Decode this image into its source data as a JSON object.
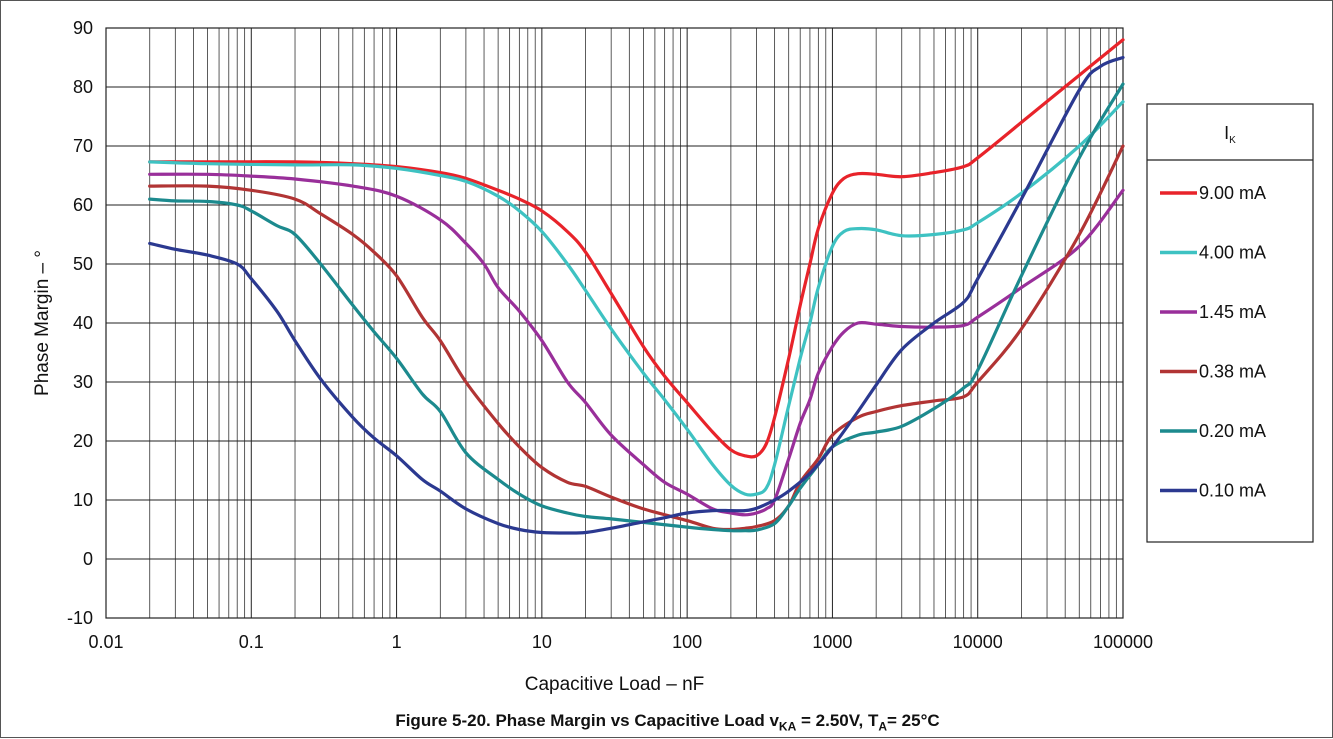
{
  "caption": {
    "prefix": "Figure 5-20. Phase Margin vs Capacitive Load v",
    "sub1": "KA",
    "middle": " = 2.50V, T",
    "sub2": "A",
    "suffix": "= 25°C"
  },
  "chart_data": {
    "type": "line",
    "title": "Figure 5-20. Phase Margin vs Capacitive Load vKA = 2.50V, TA= 25°C",
    "xlabel": "Capacitive Load – nF",
    "ylabel": "Phase Margin – °",
    "x_scale": "log",
    "xlim": [
      0.01,
      100000
    ],
    "ylim": [
      -10,
      90
    ],
    "x_tick_labels": [
      "0.01",
      "0.1",
      "1",
      "10",
      "100",
      "1000",
      "10000",
      "100000"
    ],
    "y_tick_labels": [
      "-10",
      "0",
      "10",
      "20",
      "30",
      "40",
      "50",
      "60",
      "70",
      "80",
      "90"
    ],
    "grid": true,
    "legend": {
      "title": "I",
      "title_sub": "K",
      "placement": "right"
    },
    "series": [
      {
        "name": "9.00 mA",
        "color": "#e8232a",
        "x": [
          0.02,
          0.05,
          0.2,
          0.5,
          1,
          2,
          3,
          5,
          7,
          10,
          15,
          20,
          30,
          50,
          70,
          100,
          150,
          200,
          250,
          300,
          350,
          400,
          500,
          600,
          700,
          800,
          1000,
          1200,
          1500,
          2000,
          3000,
          5000,
          8000,
          10000,
          20000,
          50000,
          100000
        ],
        "y": [
          67.3,
          67.3,
          67.3,
          67,
          66.5,
          65.5,
          64.5,
          62.5,
          61,
          59,
          55.5,
          52,
          45,
          36,
          31,
          26.5,
          21.5,
          18.5,
          17.5,
          17.5,
          19.5,
          24,
          34,
          43,
          50,
          56,
          62,
          64.5,
          65.3,
          65.2,
          64.8,
          65.5,
          66.5,
          68,
          74,
          82,
          88
        ]
      },
      {
        "name": "4.00 mA",
        "color": "#3ec2c2",
        "x": [
          0.02,
          0.05,
          0.2,
          0.5,
          1,
          2,
          3,
          5,
          7,
          10,
          15,
          20,
          30,
          50,
          70,
          100,
          150,
          200,
          250,
          300,
          350,
          400,
          500,
          600,
          700,
          800,
          1000,
          1200,
          1500,
          2000,
          3000,
          5000,
          8000,
          10000,
          20000,
          50000,
          100000
        ],
        "y": [
          67.3,
          67,
          66.8,
          66.8,
          66.2,
          65,
          64,
          61.5,
          59,
          55.5,
          50,
          45.5,
          39,
          31.5,
          27,
          22,
          16,
          12.5,
          11,
          11,
          12,
          16,
          26,
          34,
          40,
          46,
          53,
          55.5,
          56,
          55.8,
          54.8,
          55,
          55.8,
          57,
          62,
          70,
          77.5
        ]
      },
      {
        "name": "1.45 mA",
        "color": "#992f9a",
        "x": [
          0.02,
          0.05,
          0.1,
          0.2,
          0.5,
          1,
          2,
          3,
          4,
          5,
          7,
          10,
          15,
          20,
          30,
          50,
          70,
          100,
          150,
          200,
          250,
          300,
          350,
          400,
          500,
          600,
          700,
          800,
          1000,
          1200,
          1500,
          2000,
          3000,
          5000,
          8000,
          10000,
          20000,
          50000,
          100000
        ],
        "y": [
          65.2,
          65.2,
          64.9,
          64.4,
          63.2,
          61.5,
          57.5,
          53.5,
          50,
          46,
          42,
          37,
          30,
          26.5,
          21,
          16,
          13,
          11,
          8.5,
          7.8,
          7.5,
          7.8,
          8.5,
          10,
          17,
          23,
          27,
          31.5,
          36,
          38.5,
          40,
          39.8,
          39.4,
          39.3,
          39.6,
          41,
          46,
          53,
          62.5
        ]
      },
      {
        "name": "0.38 mA",
        "color": "#b13434",
        "x": [
          0.02,
          0.05,
          0.1,
          0.2,
          0.3,
          0.5,
          0.7,
          1,
          1.5,
          2,
          3,
          5,
          7,
          10,
          15,
          20,
          30,
          50,
          100,
          150,
          200,
          250,
          300,
          400,
          500,
          600,
          800,
          1000,
          1500,
          2000,
          3000,
          5000,
          8000,
          10000,
          20000,
          50000,
          100000
        ],
        "y": [
          63.2,
          63.2,
          62.5,
          61,
          58.5,
          55,
          52,
          48,
          41,
          37,
          30,
          23,
          19,
          15.5,
          13,
          12.3,
          10.5,
          8.5,
          6.5,
          5.2,
          5,
          5.2,
          5.5,
          6.5,
          9,
          13,
          17,
          21,
          24,
          25,
          26,
          26.8,
          27.5,
          30,
          39,
          55,
          70
        ]
      },
      {
        "name": "0.20 mA",
        "color": "#1c8a8e",
        "x": [
          0.02,
          0.03,
          0.05,
          0.08,
          0.1,
          0.15,
          0.2,
          0.3,
          0.5,
          0.7,
          1,
          1.5,
          2,
          3,
          5,
          7,
          10,
          15,
          20,
          30,
          50,
          100,
          150,
          200,
          250,
          300,
          400,
          500,
          600,
          800,
          1000,
          1500,
          2000,
          3000,
          5000,
          8000,
          10000,
          20000,
          50000,
          100000
        ],
        "y": [
          61,
          60.7,
          60.6,
          60,
          59,
          56.5,
          55,
          50,
          43,
          38.5,
          34,
          28,
          25,
          18,
          13.5,
          11,
          9,
          7.8,
          7.2,
          6.8,
          6.2,
          5.4,
          5,
          4.8,
          4.8,
          4.9,
          6,
          9,
          12,
          16,
          19,
          21,
          21.5,
          22.5,
          25.5,
          29,
          32,
          48,
          68,
          80.5
        ]
      },
      {
        "name": "0.10 mA",
        "color": "#2b3990",
        "x": [
          0.02,
          0.03,
          0.05,
          0.08,
          0.1,
          0.15,
          0.2,
          0.3,
          0.5,
          0.7,
          1,
          1.5,
          2,
          3,
          5,
          7,
          10,
          15,
          20,
          30,
          50,
          70,
          100,
          150,
          200,
          250,
          300,
          400,
          500,
          700,
          1000,
          1500,
          2000,
          3000,
          5000,
          8000,
          10000,
          20000,
          50000,
          70000,
          100000
        ],
        "y": [
          53.5,
          52.5,
          51.5,
          50,
          47.5,
          42,
          37,
          30.5,
          24,
          20.5,
          17.5,
          13.5,
          11.5,
          8.5,
          6,
          5,
          4.5,
          4.4,
          4.5,
          5.2,
          6.3,
          7,
          7.8,
          8.2,
          8.2,
          8.2,
          8.6,
          10,
          11.5,
          14.5,
          19,
          25,
          29.5,
          35.5,
          40,
          43.5,
          47.5,
          61,
          79.5,
          83.5,
          85
        ]
      }
    ]
  }
}
